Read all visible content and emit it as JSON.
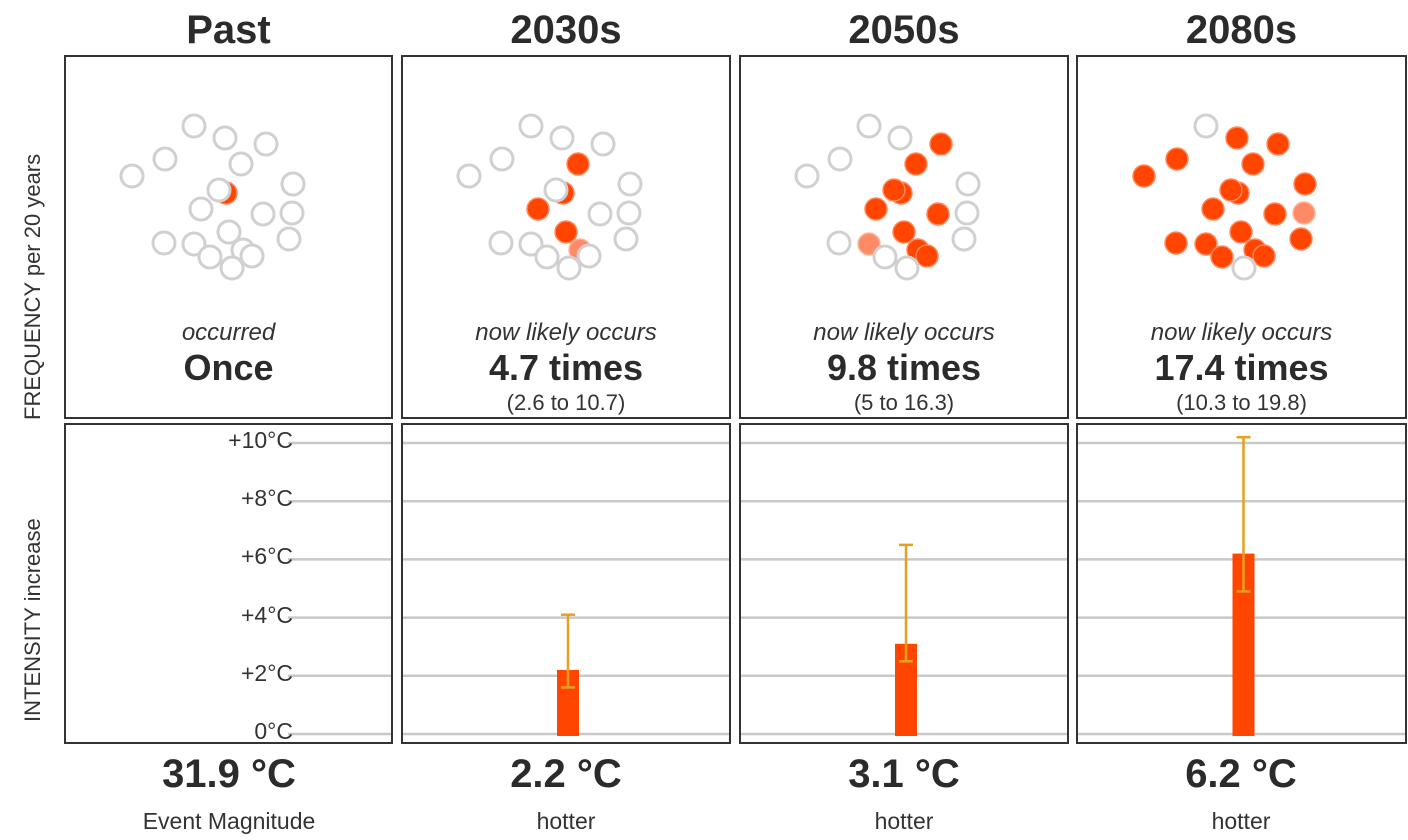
{
  "y_titles": {
    "frequency": "FREQUENCY per 20 years",
    "intensity": "INTENSITY increase"
  },
  "intensity_ticks": [
    "+10°C",
    "+8°C",
    "+6°C",
    "+4°C",
    "+2°C",
    "0°C"
  ],
  "periods": [
    {
      "title": "Past",
      "freq_lead": "occurred",
      "freq_count": "Once",
      "freq_range": "",
      "magnitude": "31.9 °C",
      "magnitude_caption": "Event Magnitude"
    },
    {
      "title": "2030s",
      "freq_lead": "now likely occurs",
      "freq_count": "4.7 times",
      "freq_range": "(2.6 to 10.7)",
      "magnitude": "2.2 °C",
      "magnitude_caption": "hotter"
    },
    {
      "title": "2050s",
      "freq_lead": "now likely occurs",
      "freq_count": "9.8 times",
      "freq_range": "(5 to 16.3)",
      "magnitude": "3.1 °C",
      "magnitude_caption": "hotter"
    },
    {
      "title": "2080s",
      "freq_lead": "now likely occurs",
      "freq_count": "17.4 times",
      "freq_range": "(10.3 to 19.8)",
      "magnitude": "6.2 °C",
      "magnitude_caption": "hotter"
    }
  ],
  "chart_data": [
    {
      "type": "scatter",
      "title": "FREQUENCY per 20 years",
      "categories": [
        "Past",
        "2030s",
        "2050s",
        "2080s"
      ],
      "values": [
        1,
        4.7,
        9.8,
        17.4
      ],
      "lower": [
        null,
        2.6,
        5,
        10.3
      ],
      "upper": [
        null,
        10.7,
        16.3,
        19.8
      ],
      "total_dots": 20
    },
    {
      "type": "bar",
      "ylabel": "INTENSITY increase",
      "categories": [
        "Past",
        "2030s",
        "2050s",
        "2080s"
      ],
      "values": [
        null,
        2.2,
        3.1,
        6.2
      ],
      "error_low": [
        null,
        1.6,
        2.5,
        4.9
      ],
      "error_high": [
        null,
        4.1,
        6.5,
        10.2
      ],
      "ylim": [
        0,
        10
      ],
      "yticks": [
        0,
        2,
        4,
        6,
        8,
        10
      ],
      "unit": "°C",
      "grid": true
    }
  ],
  "colors": {
    "filled_dot": "#ff4500",
    "partial_dot": "#ff8a66",
    "empty_dot_stroke": "#d0d0d0",
    "bar": "#ff4500",
    "error_bar": "#e6a01e",
    "grid": "#c8c8c8"
  }
}
